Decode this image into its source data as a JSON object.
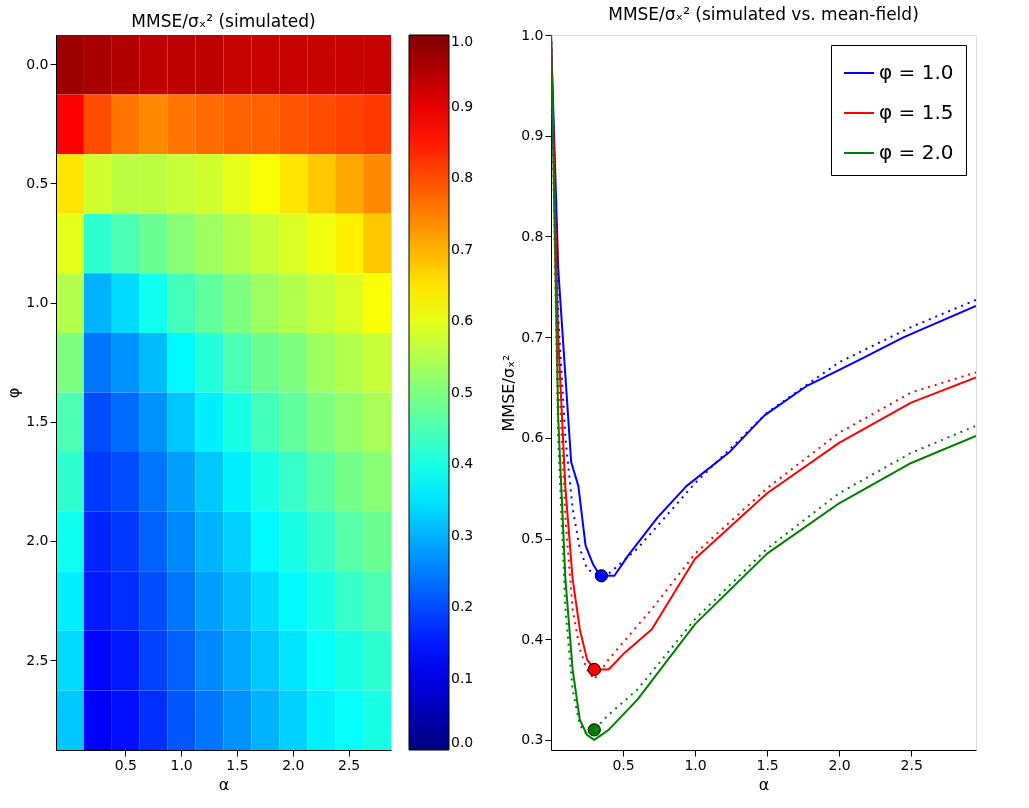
{
  "chart_data": [
    {
      "type": "heatmap",
      "title": "MMSE/σₓ² (simulated)",
      "xlabel": "α",
      "ylabel": "φ",
      "categories": [
        null,
        null,
        "0.5",
        null,
        "1.0",
        null,
        "1.5",
        null,
        "2.0",
        null,
        "2.5",
        null
      ],
      "y_categories": [
        "0.0",
        null,
        "0.5",
        null,
        "1.0",
        null,
        "1.5",
        null,
        "2.0",
        null,
        "2.5",
        null
      ],
      "clim": [
        0,
        1
      ],
      "cticks": [
        {
          "value": 0,
          "label": "0.0"
        },
        0.1,
        0.2,
        0.3,
        0.4,
        0.5,
        0.6,
        0.7,
        0.8,
        0.9,
        {
          "value": 1,
          "label": "1.0"
        }
      ],
      "cells": [
        [
          0.97,
          0.96,
          0.95,
          0.94,
          0.94,
          0.94,
          0.93,
          0.93,
          0.93,
          0.93,
          0.93,
          0.93
        ],
        [
          0.88,
          0.8,
          0.76,
          0.74,
          0.76,
          0.77,
          0.78,
          0.78,
          0.79,
          0.8,
          0.81,
          0.82
        ],
        [
          0.65,
          0.58,
          0.56,
          0.56,
          0.57,
          0.58,
          0.6,
          0.62,
          0.65,
          0.68,
          0.71,
          0.74
        ],
        [
          0.6,
          0.42,
          0.45,
          0.48,
          0.51,
          0.53,
          0.55,
          0.57,
          0.59,
          0.61,
          0.64,
          0.68
        ],
        [
          0.55,
          0.3,
          0.34,
          0.39,
          0.44,
          0.47,
          0.5,
          0.53,
          0.55,
          0.57,
          0.59,
          0.62
        ],
        [
          0.5,
          0.24,
          0.27,
          0.31,
          0.37,
          0.41,
          0.45,
          0.48,
          0.5,
          0.53,
          0.55,
          0.57
        ],
        [
          0.45,
          0.2,
          0.23,
          0.27,
          0.32,
          0.36,
          0.4,
          0.44,
          0.47,
          0.5,
          0.52,
          0.54
        ],
        [
          0.42,
          0.18,
          0.2,
          0.24,
          0.28,
          0.32,
          0.36,
          0.4,
          0.43,
          0.46,
          0.49,
          0.51
        ],
        [
          0.39,
          0.16,
          0.18,
          0.22,
          0.26,
          0.3,
          0.33,
          0.37,
          0.4,
          0.43,
          0.46,
          0.48
        ],
        [
          0.36,
          0.15,
          0.17,
          0.2,
          0.24,
          0.28,
          0.31,
          0.34,
          0.37,
          0.4,
          0.43,
          0.45
        ],
        [
          0.34,
          0.13,
          0.15,
          0.19,
          0.22,
          0.26,
          0.29,
          0.32,
          0.35,
          0.38,
          0.4,
          0.42
        ],
        [
          0.32,
          0.12,
          0.14,
          0.17,
          0.21,
          0.24,
          0.27,
          0.3,
          0.33,
          0.36,
          0.38,
          0.4
        ]
      ]
    },
    {
      "type": "line",
      "title": "MMSE/σₓ² (simulated vs. mean-field)",
      "xlabel": "α",
      "ylabel": "MMSE/σₓ²",
      "xlim": [
        0,
        2.95
      ],
      "ylim": [
        0.29,
        1.0
      ],
      "xticks": [
        0.5,
        {
          "value": 1,
          "label": "1.0"
        },
        1.5,
        {
          "value": 2,
          "label": "2.0"
        },
        2.5
      ],
      "yticks": [
        0.3,
        0.4,
        0.5,
        0.6,
        0.7,
        0.8,
        0.9,
        {
          "value": 1,
          "label": "1.0"
        }
      ],
      "legend": "top right",
      "grid": false,
      "series": [
        {
          "name": "φ = 1.0",
          "color": "#0000ff",
          "line_style": "solid",
          "x": [
            0,
            0.05,
            0.14,
            0.19,
            0.24,
            0.29,
            0.34,
            0.44,
            0.54,
            0.74,
            0.94,
            1.24,
            1.48,
            1.77,
            2.12,
            2.45,
            2.95
          ],
          "values": [
            1.0,
            0.768,
            0.576,
            0.552,
            0.493,
            0.475,
            0.463,
            0.463,
            0.484,
            0.521,
            0.552,
            0.586,
            0.622,
            0.651,
            0.676,
            0.7,
            0.731
          ]
        },
        {
          "name": "φ = 1.5",
          "color": "#ff0000",
          "line_style": "solid",
          "x": [
            0,
            0.05,
            0.1,
            0.15,
            0.2,
            0.25,
            0.3,
            0.4,
            0.5,
            0.7,
            1.0,
            1.5,
            2.0,
            2.5,
            2.95
          ],
          "values": [
            1.0,
            0.7,
            0.55,
            0.46,
            0.41,
            0.38,
            0.37,
            0.37,
            0.385,
            0.41,
            0.48,
            0.545,
            0.595,
            0.635,
            0.66
          ]
        },
        {
          "name": "φ = 2.0",
          "color": "#008000",
          "line_style": "solid",
          "x": [
            0,
            0.05,
            0.1,
            0.15,
            0.2,
            0.25,
            0.3,
            0.4,
            0.6,
            1.0,
            1.5,
            2.0,
            2.5,
            2.95
          ],
          "values": [
            1.0,
            0.62,
            0.46,
            0.37,
            0.32,
            0.305,
            0.3,
            0.31,
            0.34,
            0.415,
            0.485,
            0.535,
            0.575,
            0.602
          ]
        },
        {
          "color": "#0000ff",
          "line_style": "dotted",
          "x": [
            0,
            0.05,
            0.1,
            0.15,
            0.2,
            0.25,
            0.3,
            0.4,
            0.6,
            1.0,
            1.5,
            2.0,
            2.5,
            2.95
          ],
          "values": [
            1.0,
            0.72,
            0.6,
            0.53,
            0.49,
            0.47,
            0.465,
            0.465,
            0.49,
            0.555,
            0.625,
            0.675,
            0.71,
            0.737
          ]
        },
        {
          "color": "#ff0000",
          "line_style": "dotted",
          "x": [
            0,
            0.05,
            0.1,
            0.15,
            0.2,
            0.25,
            0.3,
            0.4,
            0.7,
            1.0,
            1.5,
            2.0,
            2.5,
            2.95
          ],
          "values": [
            1.0,
            0.68,
            0.52,
            0.43,
            0.39,
            0.37,
            0.36,
            0.38,
            0.43,
            0.485,
            0.55,
            0.605,
            0.645,
            0.665
          ]
        },
        {
          "color": "#008000",
          "line_style": "dotted",
          "x": [
            0,
            0.05,
            0.1,
            0.15,
            0.2,
            0.25,
            0.3,
            0.4,
            0.6,
            1.0,
            1.5,
            2.0,
            2.5,
            2.95
          ],
          "values": [
            1.0,
            0.6,
            0.43,
            0.35,
            0.315,
            0.305,
            0.31,
            0.325,
            0.35,
            0.42,
            0.49,
            0.545,
            0.585,
            0.612
          ]
        },
        {
          "type": "scatter",
          "marker": "circle",
          "color": "#0000ff",
          "x": [
            0.35
          ],
          "values": [
            0.463
          ]
        },
        {
          "type": "scatter",
          "marker": "circle",
          "color": "#ff0000",
          "x": [
            0.3
          ],
          "values": [
            0.37
          ]
        },
        {
          "type": "scatter",
          "marker": "circle",
          "color": "#008000",
          "x": [
            0.3
          ],
          "values": [
            0.31
          ]
        }
      ]
    }
  ]
}
